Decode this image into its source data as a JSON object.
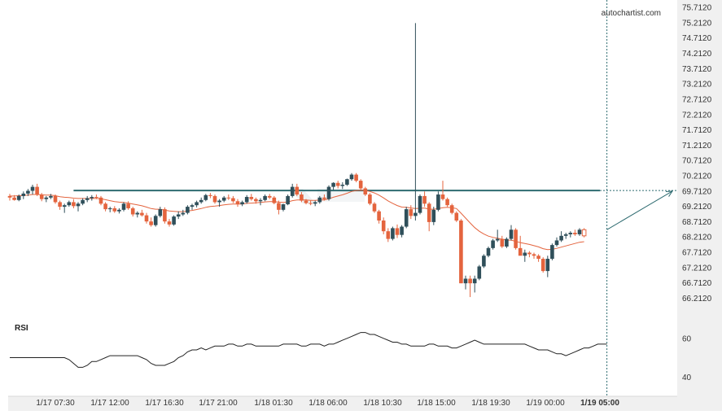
{
  "brand": "autochartist.com",
  "panels": {
    "rsi_label": "RSI"
  },
  "colors": {
    "bull": "#2f4f5a",
    "bear": "#e4643e",
    "ma": "#e4643e",
    "resistance": "#2e6b70",
    "forecast": "#2e6b70",
    "rsi_line": "#222222",
    "axis_text": "#333333",
    "axis_bg": "#f0f0f0"
  },
  "chart_data": [
    {
      "type": "candlestick",
      "title": "",
      "xlabel": "",
      "ylabel": "",
      "ylim": [
        65.8,
        75.82
      ],
      "y_ticks": [
        "75.7120",
        "75.2120",
        "74.7120",
        "74.2120",
        "73.7120",
        "73.2120",
        "72.7120",
        "72.2120",
        "71.7120",
        "71.2120",
        "70.7120",
        "70.2120",
        "69.7120",
        "69.2120",
        "68.7120",
        "68.2120",
        "67.7120",
        "67.2120",
        "66.7120",
        "66.2120"
      ],
      "x_ticks": [
        "1/17 07:30",
        "1/17 12:00",
        "1/17 16:30",
        "1/17 21:00",
        "1/18 01:30",
        "1/18 06:00",
        "1/18 10:30",
        "1/18 15:00",
        "1/18 19:30",
        "1/19 00:00",
        "1/19 05:00"
      ],
      "resistance_level": 69.73,
      "resistance_start": 14,
      "forecast": {
        "from_index": 131,
        "from_value": 68.45,
        "to_value": 69.71
      },
      "current_index": 131,
      "ohlc": [
        [
          69.55,
          69.62,
          69.4,
          69.5
        ],
        [
          69.5,
          69.58,
          69.4,
          69.42
        ],
        [
          69.42,
          69.6,
          69.38,
          69.55
        ],
        [
          69.55,
          69.7,
          69.45,
          69.63
        ],
        [
          69.63,
          69.78,
          69.55,
          69.72
        ],
        [
          69.72,
          69.92,
          69.6,
          69.85
        ],
        [
          69.85,
          69.95,
          69.55,
          69.6
        ],
        [
          69.6,
          69.65,
          69.38,
          69.45
        ],
        [
          69.45,
          69.55,
          69.35,
          69.5
        ],
        [
          69.5,
          69.62,
          69.45,
          69.55
        ],
        [
          69.55,
          69.6,
          69.3,
          69.35
        ],
        [
          69.35,
          69.4,
          69.1,
          69.2
        ],
        [
          69.2,
          69.3,
          69.0,
          69.25
        ],
        [
          69.25,
          69.4,
          69.2,
          69.35
        ],
        [
          69.35,
          69.45,
          69.15,
          69.22
        ],
        [
          69.22,
          69.35,
          69.05,
          69.3
        ],
        [
          69.3,
          69.48,
          69.25,
          69.42
        ],
        [
          69.42,
          69.55,
          69.35,
          69.48
        ],
        [
          69.48,
          69.58,
          69.4,
          69.52
        ],
        [
          69.52,
          69.6,
          69.45,
          69.5
        ],
        [
          69.5,
          69.55,
          69.25,
          69.3
        ],
        [
          69.3,
          69.35,
          69.05,
          69.12
        ],
        [
          69.12,
          69.2,
          69.02,
          69.15
        ],
        [
          69.15,
          69.22,
          69.0,
          69.05
        ],
        [
          69.05,
          69.15,
          68.98,
          69.1
        ],
        [
          69.1,
          69.35,
          69.05,
          69.3
        ],
        [
          69.3,
          69.38,
          69.1,
          69.15
        ],
        [
          69.15,
          69.2,
          68.88,
          68.95
        ],
        [
          68.95,
          69.05,
          68.85,
          69.0
        ],
        [
          69.0,
          69.1,
          68.88,
          68.92
        ],
        [
          68.92,
          69.0,
          68.65,
          68.72
        ],
        [
          68.72,
          68.85,
          68.55,
          68.6
        ],
        [
          68.6,
          68.95,
          68.55,
          68.9
        ],
        [
          68.9,
          69.2,
          68.85,
          69.12
        ],
        [
          69.12,
          69.18,
          68.65,
          68.72
        ],
        [
          68.72,
          68.8,
          68.55,
          68.62
        ],
        [
          68.62,
          68.92,
          68.58,
          68.88
        ],
        [
          68.88,
          69.05,
          68.8,
          68.95
        ],
        [
          68.95,
          69.1,
          68.9,
          69.0
        ],
        [
          69.0,
          69.25,
          68.95,
          69.2
        ],
        [
          69.2,
          69.3,
          69.1,
          69.25
        ],
        [
          69.25,
          69.4,
          69.18,
          69.35
        ],
        [
          69.35,
          69.5,
          69.3,
          69.42
        ],
        [
          69.42,
          69.62,
          69.38,
          69.58
        ],
        [
          69.58,
          69.65,
          69.48,
          69.55
        ],
        [
          69.55,
          69.6,
          69.3,
          69.35
        ],
        [
          69.35,
          69.45,
          69.2,
          69.4
        ],
        [
          69.4,
          69.55,
          69.35,
          69.5
        ],
        [
          69.5,
          69.6,
          69.42,
          69.48
        ],
        [
          69.48,
          69.55,
          69.32,
          69.38
        ],
        [
          69.38,
          69.45,
          69.2,
          69.28
        ],
        [
          69.28,
          69.4,
          69.22,
          69.35
        ],
        [
          69.35,
          69.58,
          69.3,
          69.52
        ],
        [
          69.52,
          69.62,
          69.4,
          69.45
        ],
        [
          69.45,
          69.5,
          69.3,
          69.38
        ],
        [
          69.38,
          69.48,
          69.25,
          69.42
        ],
        [
          69.42,
          69.6,
          69.38,
          69.55
        ],
        [
          69.55,
          69.62,
          69.45,
          69.5
        ],
        [
          69.5,
          69.55,
          69.28,
          69.32
        ],
        [
          69.32,
          69.4,
          68.95,
          69.1
        ],
        [
          69.1,
          69.3,
          69.05,
          69.28
        ],
        [
          69.28,
          69.6,
          69.25,
          69.55
        ],
        [
          69.55,
          69.95,
          69.5,
          69.85
        ],
        [
          69.85,
          69.95,
          69.55,
          69.6
        ],
        [
          69.6,
          69.68,
          69.35,
          69.4
        ],
        [
          69.4,
          69.45,
          69.28,
          69.32
        ],
        [
          69.32,
          69.4,
          69.25,
          69.3
        ],
        [
          69.3,
          69.4,
          69.22,
          69.35
        ],
        [
          69.35,
          69.55,
          69.3,
          69.5
        ],
        [
          69.5,
          69.6,
          69.4,
          69.45
        ],
        [
          69.45,
          69.9,
          69.4,
          69.85
        ],
        [
          69.85,
          70.0,
          69.75,
          69.98
        ],
        [
          69.98,
          70.05,
          69.8,
          69.88
        ],
        [
          69.88,
          70.0,
          69.78,
          69.92
        ],
        [
          69.92,
          70.12,
          69.88,
          70.1
        ],
        [
          70.1,
          70.3,
          70.05,
          70.25
        ],
        [
          70.25,
          70.3,
          70.0,
          70.05
        ],
        [
          70.05,
          70.1,
          69.75,
          69.8
        ],
        [
          69.8,
          69.85,
          69.55,
          69.6
        ],
        [
          69.6,
          69.65,
          69.25,
          69.3
        ],
        [
          69.3,
          69.35,
          69.0,
          69.05
        ],
        [
          69.05,
          69.1,
          68.65,
          68.75
        ],
        [
          68.75,
          68.85,
          68.3,
          68.4
        ],
        [
          68.4,
          68.5,
          68.05,
          68.15
        ],
        [
          68.15,
          68.55,
          68.1,
          68.5
        ],
        [
          68.5,
          68.62,
          68.18,
          68.28
        ],
        [
          68.28,
          68.6,
          68.2,
          68.55
        ],
        [
          68.55,
          69.2,
          68.5,
          69.12
        ],
        [
          69.12,
          69.25,
          68.8,
          68.9
        ],
        [
          68.9,
          75.2,
          68.75,
          69.0
        ],
        [
          69.0,
          69.6,
          68.95,
          69.55
        ],
        [
          69.55,
          69.7,
          69.2,
          69.3
        ],
        [
          69.3,
          69.35,
          68.4,
          68.7
        ],
        [
          68.7,
          69.2,
          68.6,
          69.1
        ],
        [
          69.1,
          69.7,
          69.05,
          69.6
        ],
        [
          69.6,
          70.05,
          69.4,
          69.45
        ],
        [
          69.45,
          69.5,
          69.2,
          69.25
        ],
        [
          69.25,
          69.3,
          68.95,
          69.0
        ],
        [
          69.0,
          69.05,
          68.7,
          68.75
        ],
        [
          68.75,
          68.8,
          66.7,
          66.7
        ],
        [
          66.7,
          66.95,
          66.5,
          66.85
        ],
        [
          66.85,
          66.95,
          66.25,
          66.7
        ],
        [
          66.7,
          66.95,
          66.4,
          66.85
        ],
        [
          66.85,
          67.3,
          66.8,
          67.25
        ],
        [
          67.25,
          67.65,
          67.2,
          67.6
        ],
        [
          67.6,
          67.9,
          67.55,
          67.85
        ],
        [
          67.85,
          68.15,
          67.8,
          68.1
        ],
        [
          68.1,
          68.45,
          68.05,
          68.15
        ],
        [
          68.15,
          68.25,
          67.85,
          67.9
        ],
        [
          67.9,
          68.2,
          67.85,
          68.15
        ],
        [
          68.15,
          68.6,
          68.1,
          68.45
        ],
        [
          68.45,
          68.5,
          67.8,
          67.85
        ],
        [
          67.85,
          68.25,
          67.7,
          67.6
        ],
        [
          67.6,
          67.8,
          67.4,
          67.7
        ],
        [
          67.7,
          67.75,
          67.55,
          67.65
        ],
        [
          67.65,
          67.7,
          67.5,
          67.6
        ],
        [
          67.6,
          67.65,
          67.4,
          67.5
        ],
        [
          67.5,
          67.55,
          67.05,
          67.1
        ],
        [
          67.1,
          67.6,
          66.9,
          67.5
        ],
        [
          67.5,
          68.0,
          67.45,
          67.95
        ],
        [
          67.95,
          68.2,
          67.9,
          68.1
        ],
        [
          68.1,
          68.4,
          68.05,
          68.25
        ],
        [
          68.25,
          68.35,
          68.15,
          68.3
        ],
        [
          68.3,
          68.4,
          68.2,
          68.35
        ],
        [
          68.35,
          68.45,
          68.25,
          68.3
        ],
        [
          68.3,
          68.5,
          68.25,
          68.45
        ],
        [
          68.45,
          68.5,
          68.2,
          68.25
        ]
      ],
      "ma": [
        69.55,
        69.55,
        69.56,
        69.57,
        69.58,
        69.6,
        69.6,
        69.59,
        69.58,
        69.58,
        69.56,
        69.53,
        69.51,
        69.5,
        69.48,
        69.47,
        69.47,
        69.47,
        69.47,
        69.47,
        69.46,
        69.43,
        69.4,
        69.37,
        69.35,
        69.34,
        69.32,
        69.29,
        69.26,
        69.23,
        69.19,
        69.14,
        69.12,
        69.12,
        69.09,
        69.06,
        69.05,
        69.04,
        69.04,
        69.06,
        69.08,
        69.11,
        69.14,
        69.18,
        69.21,
        69.22,
        69.24,
        69.26,
        69.28,
        69.29,
        69.29,
        69.29,
        69.31,
        69.32,
        69.33,
        69.34,
        69.36,
        69.37,
        69.37,
        69.35,
        69.34,
        69.36,
        69.4,
        69.42,
        69.42,
        69.42,
        69.41,
        69.41,
        69.42,
        69.42,
        69.46,
        69.51,
        69.55,
        69.59,
        69.64,
        69.7,
        69.73,
        69.74,
        69.73,
        69.7,
        69.65,
        69.58,
        69.49,
        69.39,
        69.31,
        69.24,
        69.19,
        69.18,
        69.16,
        69.14,
        69.15,
        69.16,
        69.12,
        69.12,
        69.14,
        69.17,
        69.18,
        69.17,
        69.14,
        68.99,
        68.83,
        68.67,
        68.52,
        68.4,
        68.31,
        68.24,
        68.2,
        68.17,
        68.14,
        68.11,
        68.11,
        68.07,
        68.03,
        68.0,
        67.97,
        67.93,
        67.89,
        67.83,
        67.8,
        67.81,
        67.84,
        67.88,
        67.92,
        67.96,
        68.0,
        68.04,
        68.06
      ]
    },
    {
      "type": "line",
      "title": "RSI",
      "xlabel": "",
      "ylabel": "",
      "ylim": [
        30,
        70
      ],
      "y_ticks": [
        "60",
        "40"
      ],
      "values": [
        50,
        50,
        50,
        50,
        50,
        50,
        50,
        50,
        50,
        50,
        50,
        50,
        50,
        49,
        47,
        45,
        45,
        46,
        48,
        48,
        49,
        50,
        51,
        51,
        51,
        51,
        51,
        51,
        51,
        50,
        49,
        47,
        46,
        46,
        46,
        47,
        48,
        50,
        51,
        53,
        54,
        54,
        55,
        54,
        55,
        56,
        56,
        56,
        57,
        57,
        56,
        56,
        57,
        57,
        56,
        56,
        56,
        56,
        56,
        56,
        57,
        57,
        57,
        57,
        56,
        56,
        57,
        57,
        57,
        56,
        57,
        57,
        58,
        59,
        60,
        61,
        62,
        63,
        63,
        62,
        62,
        61,
        60,
        59,
        58,
        58,
        57,
        57,
        56,
        56,
        56,
        56,
        57,
        57,
        56,
        56,
        56,
        55,
        55,
        56,
        57,
        58,
        59,
        58,
        57,
        57,
        57,
        57,
        57,
        57,
        57,
        57,
        57,
        57,
        56,
        55,
        54,
        54,
        54,
        53,
        52,
        52,
        51,
        52,
        53,
        54,
        55,
        55,
        56,
        57,
        57,
        57
      ],
      "levels": [
        60,
        40
      ]
    }
  ]
}
